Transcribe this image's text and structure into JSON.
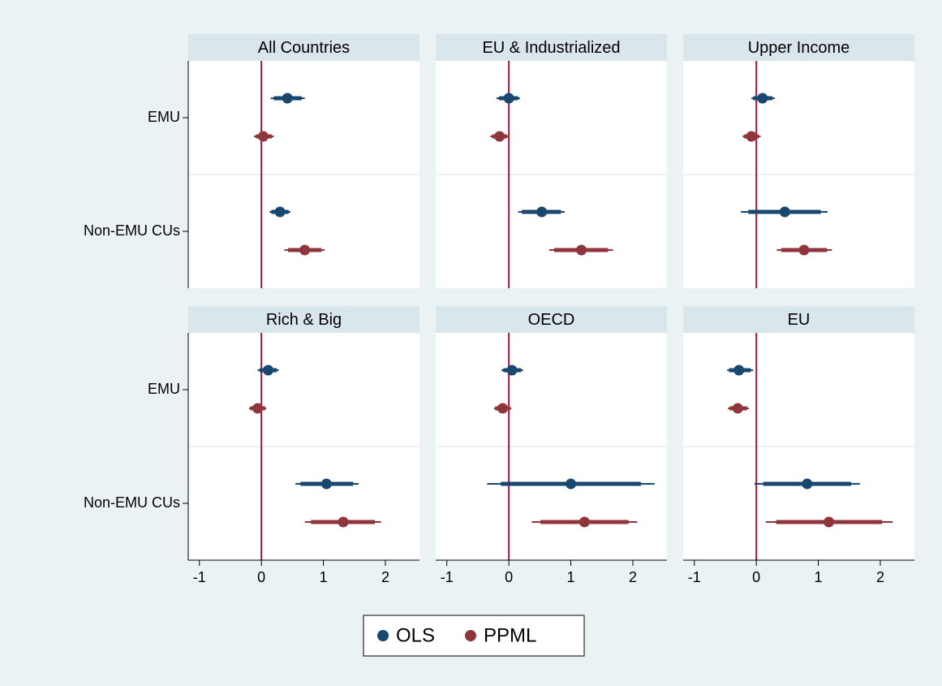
{
  "chart_data": {
    "type": "coefplot",
    "categories": [
      "EMU",
      "Non-EMU CUs"
    ],
    "xlim": [
      -1.18,
      2.55
    ],
    "xticks": [
      -1,
      0,
      1,
      2
    ],
    "xline": 0,
    "xline_color": "#a3163b",
    "series": [
      {
        "name": "OLS",
        "color": "#1a476f"
      },
      {
        "name": "PPML",
        "color": "#90353b"
      }
    ],
    "panels": [
      {
        "title": "All Countries",
        "series": [
          {
            "values": [
              0.42,
              0.3
            ],
            "ci95": [
              [
                0.15,
                0.7
              ],
              [
                0.13,
                0.47
              ]
            ],
            "ci90": [
              [
                0.2,
                0.65
              ],
              [
                0.16,
                0.44
              ]
            ]
          },
          {
            "values": [
              0.03,
              0.7
            ],
            "ci95": [
              [
                -0.12,
                0.2
              ],
              [
                0.37,
                1.02
              ]
            ],
            "ci90": [
              [
                -0.09,
                0.17
              ],
              [
                0.43,
                0.97
              ]
            ]
          }
        ]
      },
      {
        "title": "EU & Industrialized",
        "series": [
          {
            "values": [
              0.0,
              0.53
            ],
            "ci95": [
              [
                -0.2,
                0.18
              ],
              [
                0.15,
                0.9
              ]
            ],
            "ci90": [
              [
                -0.16,
                0.15
              ],
              [
                0.21,
                0.84
              ]
            ]
          },
          {
            "values": [
              -0.15,
              1.17
            ],
            "ci95": [
              [
                -0.3,
                0.0
              ],
              [
                0.65,
                1.68
              ]
            ],
            "ci90": [
              [
                -0.27,
                -0.03
              ],
              [
                0.73,
                1.6
              ]
            ]
          }
        ]
      },
      {
        "title": "Upper Income",
        "series": [
          {
            "values": [
              0.1,
              0.46
            ],
            "ci95": [
              [
                -0.08,
                0.3
              ],
              [
                -0.25,
                1.15
              ]
            ],
            "ci90": [
              [
                -0.05,
                0.26
              ],
              [
                -0.13,
                1.04
              ]
            ]
          },
          {
            "values": [
              -0.08,
              0.77
            ],
            "ci95": [
              [
                -0.22,
                0.07
              ],
              [
                0.33,
                1.22
              ]
            ],
            "ci90": [
              [
                -0.2,
                0.04
              ],
              [
                0.4,
                1.14
              ]
            ]
          }
        ]
      },
      {
        "title": "Rich & Big",
        "series": [
          {
            "values": [
              0.11,
              1.05
            ],
            "ci95": [
              [
                -0.06,
                0.28
              ],
              [
                0.55,
                1.57
              ]
            ],
            "ci90": [
              [
                -0.03,
                0.25
              ],
              [
                0.63,
                1.48
              ]
            ]
          },
          {
            "values": [
              -0.06,
              1.32
            ],
            "ci95": [
              [
                -0.2,
                0.08
              ],
              [
                0.7,
                1.93
              ]
            ],
            "ci90": [
              [
                -0.18,
                0.06
              ],
              [
                0.8,
                1.83
              ]
            ]
          }
        ]
      },
      {
        "title": "OECD",
        "series": [
          {
            "values": [
              0.05,
              1.0
            ],
            "ci95": [
              [
                -0.12,
                0.23
              ],
              [
                -0.35,
                2.35
              ]
            ],
            "ci90": [
              [
                -0.09,
                0.2
              ],
              [
                -0.13,
                2.13
              ]
            ]
          },
          {
            "values": [
              -0.1,
              1.22
            ],
            "ci95": [
              [
                -0.24,
                0.04
              ],
              [
                0.37,
                2.07
              ]
            ],
            "ci90": [
              [
                -0.22,
                0.02
              ],
              [
                0.51,
                1.93
              ]
            ]
          }
        ]
      },
      {
        "title": "EU",
        "series": [
          {
            "values": [
              -0.28,
              0.82
            ],
            "ci95": [
              [
                -0.47,
                -0.05
              ],
              [
                -0.03,
                1.67
              ]
            ],
            "ci90": [
              [
                -0.44,
                -0.09
              ],
              [
                0.11,
                1.53
              ]
            ]
          },
          {
            "values": [
              -0.3,
              1.17
            ],
            "ci95": [
              [
                -0.46,
                -0.12
              ],
              [
                0.15,
                2.2
              ]
            ],
            "ci90": [
              [
                -0.43,
                -0.15
              ],
              [
                0.32,
                2.03
              ]
            ]
          }
        ]
      }
    ]
  }
}
